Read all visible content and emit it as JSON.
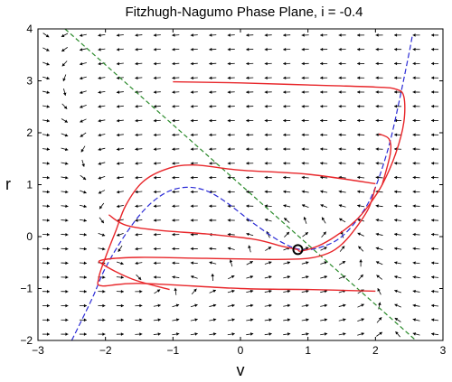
{
  "chart_data": {
    "type": "line",
    "title": "Fitzhugh-Nagumo Phase Plane, i = -0.4",
    "xlabel": "v",
    "ylabel": "r",
    "xlim": [
      -3,
      3
    ],
    "ylim": [
      -2,
      4
    ],
    "x_ticks": [
      "−3",
      "−2",
      "−1",
      "0",
      "1",
      "2",
      "3"
    ],
    "y_ticks": [
      "−2",
      "−1",
      "0",
      "1",
      "2",
      "3",
      "4"
    ],
    "grid": false,
    "legend": "none",
    "colors": {
      "trajectory": "#e8262a",
      "v_nullcline": "#2b2bd6",
      "r_nullcline": "#2a8a2a",
      "vector_field": "#000000",
      "fixed_point": "#000000"
    },
    "v_nullcline_dashed_cubic": [
      [
        -2.5,
        -2.0
      ],
      [
        -2.2,
        -1.2
      ],
      [
        -2.0,
        -0.6
      ],
      [
        -1.7,
        0.05
      ],
      [
        -1.4,
        0.55
      ],
      [
        -1.1,
        0.85
      ],
      [
        -0.8,
        0.95
      ],
      [
        -0.5,
        0.88
      ],
      [
        -0.2,
        0.65
      ],
      [
        0.2,
        0.25
      ],
      [
        0.6,
        -0.1
      ],
      [
        0.9,
        -0.25
      ],
      [
        1.2,
        -0.2
      ],
      [
        1.5,
        0.0
      ],
      [
        1.8,
        0.45
      ],
      [
        2.0,
        0.95
      ],
      [
        2.2,
        1.75
      ],
      [
        2.35,
        2.6
      ],
      [
        2.5,
        3.55
      ],
      [
        2.55,
        3.9
      ]
    ],
    "r_nullcline_dashed_line": [
      [
        -2.6,
        4.0
      ],
      [
        2.6,
        -2.0
      ]
    ],
    "fixed_point": [
      0.85,
      -0.25
    ],
    "trajectories": [
      [
        [
          -1.0,
          2.98
        ],
        [
          0.0,
          2.96
        ],
        [
          1.0,
          2.92
        ],
        [
          2.0,
          2.88
        ],
        [
          2.3,
          2.84
        ],
        [
          2.42,
          2.7
        ],
        [
          2.42,
          2.2
        ],
        [
          2.3,
          1.6
        ],
        [
          2.1,
          1.0
        ],
        [
          1.9,
          0.6
        ],
        [
          1.7,
          0.3
        ],
        [
          1.4,
          0.0
        ],
        [
          1.15,
          -0.18
        ],
        [
          0.9,
          -0.28
        ],
        [
          0.85,
          -0.25
        ]
      ],
      [
        [
          2.05,
          1.98
        ],
        [
          2.2,
          1.88
        ],
        [
          2.22,
          1.6
        ],
        [
          2.1,
          1.0
        ]
      ],
      [
        [
          2.0,
          1.02
        ],
        [
          1.0,
          1.2
        ],
        [
          0.0,
          1.28
        ],
        [
          -0.7,
          1.38
        ],
        [
          -1.1,
          1.3
        ],
        [
          -1.45,
          1.05
        ],
        [
          -1.7,
          0.6
        ],
        [
          -1.85,
          0.1
        ],
        [
          -2.0,
          -0.4
        ],
        [
          -2.1,
          -0.8
        ],
        [
          -2.05,
          -0.95
        ],
        [
          -1.5,
          -0.9
        ],
        [
          0.0,
          -1.0
        ],
        [
          1.0,
          -1.02
        ],
        [
          2.0,
          -1.05
        ]
      ],
      [
        [
          -1.95,
          0.42
        ],
        [
          -1.7,
          0.22
        ],
        [
          -1.2,
          0.12
        ],
        [
          -0.5,
          0.05
        ],
        [
          0.2,
          -0.05
        ],
        [
          0.6,
          -0.18
        ],
        [
          0.85,
          -0.25
        ]
      ],
      [
        [
          -1.05,
          -1.02
        ],
        [
          -1.6,
          -0.82
        ],
        [
          -2.02,
          -0.55
        ],
        [
          -2.05,
          -0.45
        ],
        [
          -1.5,
          -0.4
        ],
        [
          -0.5,
          -0.42
        ],
        [
          0.5,
          -0.44
        ],
        [
          1.0,
          -0.42
        ],
        [
          1.3,
          -0.32
        ],
        [
          1.5,
          -0.15
        ],
        [
          1.7,
          0.15
        ],
        [
          1.9,
          0.55
        ],
        [
          2.0,
          0.95
        ]
      ]
    ]
  }
}
